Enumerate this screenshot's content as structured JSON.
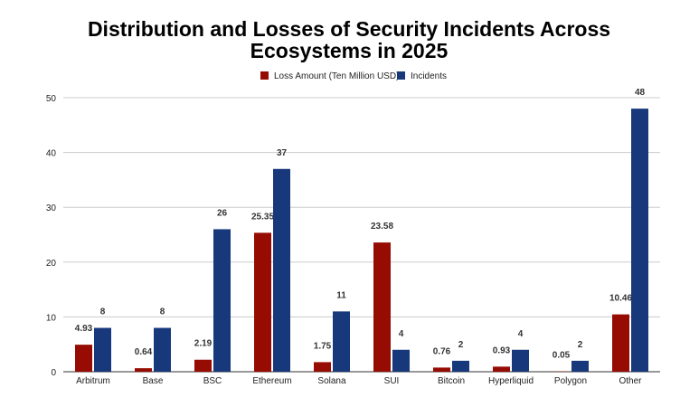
{
  "chart_data": {
    "type": "bar",
    "title_lines": [
      "Distribution and Losses of Security Incidents Across",
      "Ecosystems in 2025"
    ],
    "categories": [
      "Arbitrum",
      "Base",
      "BSC",
      "Ethereum",
      "Solana",
      "SUI",
      "Bitcoin",
      "Hyperliquid",
      "Polygon",
      "Other"
    ],
    "series": [
      {
        "name": "Loss Amount (Ten Million USD)",
        "color": "#960c02",
        "values": [
          4.93,
          0.64,
          2.19,
          25.35,
          1.75,
          23.58,
          0.76,
          0.93,
          0.05,
          10.46
        ],
        "labels": [
          "4.93",
          "0.64",
          "2.19",
          "25.35",
          "1.75",
          "23.58",
          "0.76",
          "0.93",
          "0.05",
          "10.46"
        ]
      },
      {
        "name": "Incidents",
        "color": "#17387a",
        "values": [
          8,
          8,
          26,
          37,
          11,
          4,
          2,
          4,
          2,
          48
        ],
        "labels": [
          "8",
          "8",
          "26",
          "37",
          "11",
          "4",
          "2",
          "4",
          "2",
          "48"
        ]
      }
    ],
    "ylim": [
      0,
      50
    ],
    "yticks": [
      0,
      10,
      20,
      30,
      40,
      50
    ],
    "xlabel": "",
    "ylabel": "",
    "grid": true,
    "legend": "top-right"
  }
}
